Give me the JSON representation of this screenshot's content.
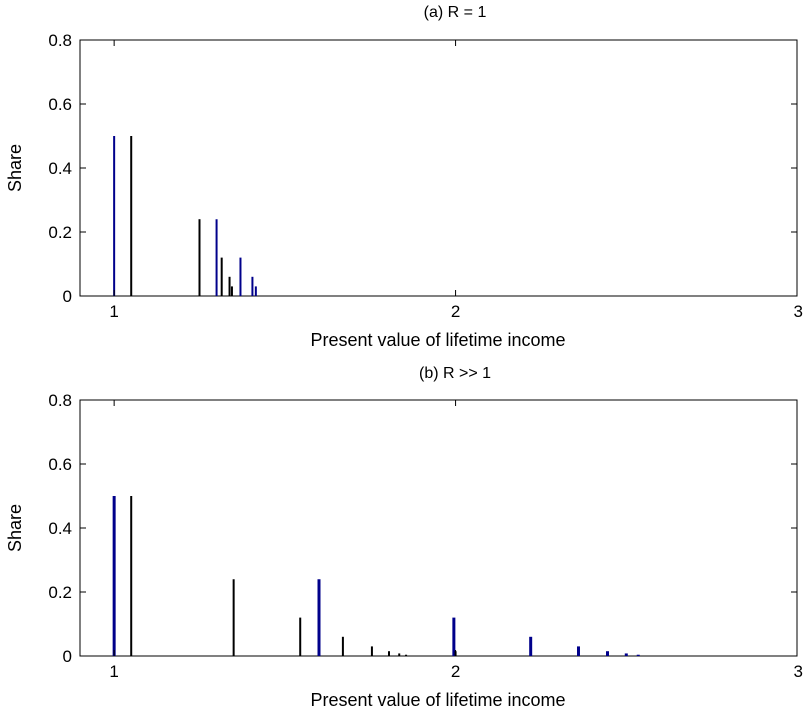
{
  "chart_data": [
    {
      "type": "bar",
      "title": "(a) R = 1",
      "xlabel": "Present value of lifetime income",
      "ylabel": "Share",
      "xlim": [
        0.9,
        3
      ],
      "ylim": [
        0,
        0.8
      ],
      "xticks": [
        1,
        2,
        3
      ],
      "yticks": [
        0,
        0.2,
        0.4,
        0.6,
        0.8
      ],
      "grid": false,
      "series": [
        {
          "color": "#00008b",
          "points": [
            {
              "x": 1.0,
              "y": 0.5
            },
            {
              "x": 1.3,
              "y": 0.24
            },
            {
              "x": 1.37,
              "y": 0.12
            },
            {
              "x": 1.405,
              "y": 0.06
            },
            {
              "x": 1.415,
              "y": 0.03
            }
          ]
        },
        {
          "color": "#000000",
          "points": [
            {
              "x": 1.05,
              "y": 0.5
            },
            {
              "x": 1.25,
              "y": 0.24
            },
            {
              "x": 1.315,
              "y": 0.12
            },
            {
              "x": 1.338,
              "y": 0.06
            },
            {
              "x": 1.345,
              "y": 0.03
            }
          ]
        }
      ]
    },
    {
      "type": "bar",
      "title": "(b) R >> 1",
      "xlabel": "Present value of lifetime income",
      "ylabel": "Share",
      "xlim": [
        0.9,
        3
      ],
      "ylim": [
        0,
        0.8
      ],
      "xticks": [
        1,
        2,
        3
      ],
      "yticks": [
        0,
        0.2,
        0.4,
        0.6,
        0.8
      ],
      "grid": false,
      "series": [
        {
          "color": "#00008b",
          "points": [
            {
              "x": 1.0,
              "y": 0.5
            },
            {
              "x": 1.6,
              "y": 0.24
            },
            {
              "x": 1.995,
              "y": 0.12
            },
            {
              "x": 2.22,
              "y": 0.06
            },
            {
              "x": 2.36,
              "y": 0.03
            },
            {
              "x": 2.445,
              "y": 0.015
            },
            {
              "x": 2.5,
              "y": 0.008
            },
            {
              "x": 2.535,
              "y": 0.004
            }
          ]
        },
        {
          "color": "#000000",
          "points": [
            {
              "x": 1.05,
              "y": 0.5
            },
            {
              "x": 1.35,
              "y": 0.24
            },
            {
              "x": 1.545,
              "y": 0.12
            },
            {
              "x": 1.67,
              "y": 0.06
            },
            {
              "x": 1.755,
              "y": 0.03
            },
            {
              "x": 1.805,
              "y": 0.015
            },
            {
              "x": 1.835,
              "y": 0.008
            },
            {
              "x": 1.855,
              "y": 0.004
            },
            {
              "x": 2.0,
              "y": 0.015
            }
          ]
        }
      ]
    }
  ]
}
